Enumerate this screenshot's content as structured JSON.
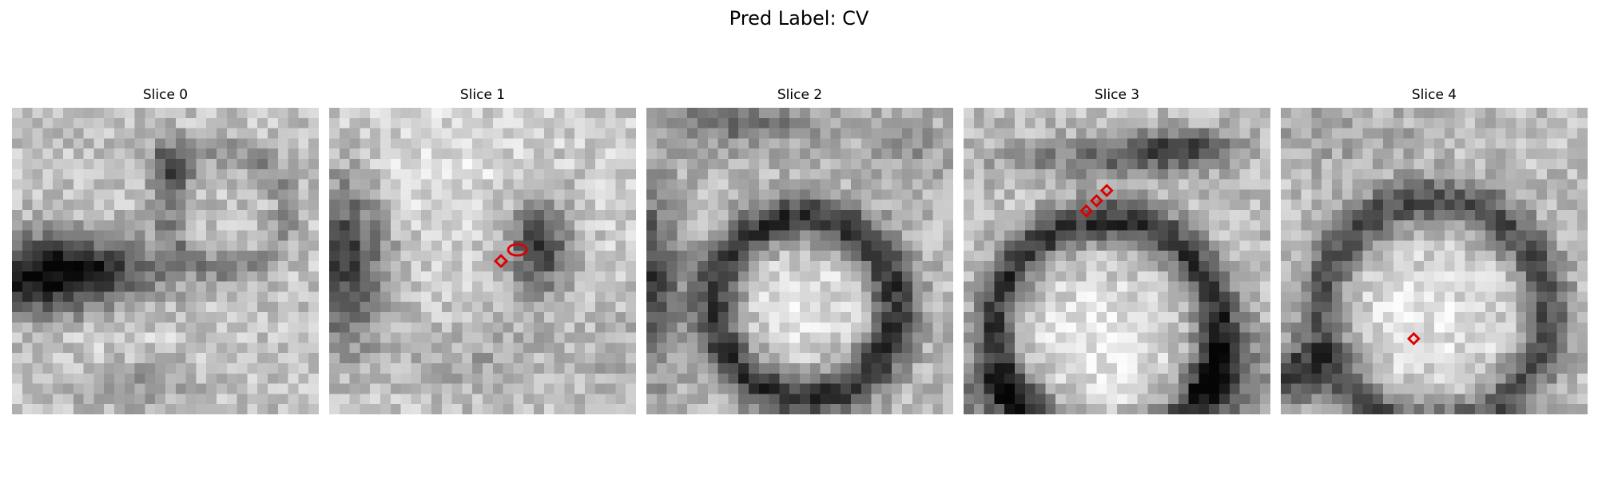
{
  "suptitle": "Pred Label: CV",
  "marker_color": "#dd0000",
  "panels": [
    {
      "title": "Slice 0"
    },
    {
      "title": "Slice 1"
    },
    {
      "title": "Slice 2"
    },
    {
      "title": "Slice 3"
    },
    {
      "title": "Slice 4"
    }
  ]
}
